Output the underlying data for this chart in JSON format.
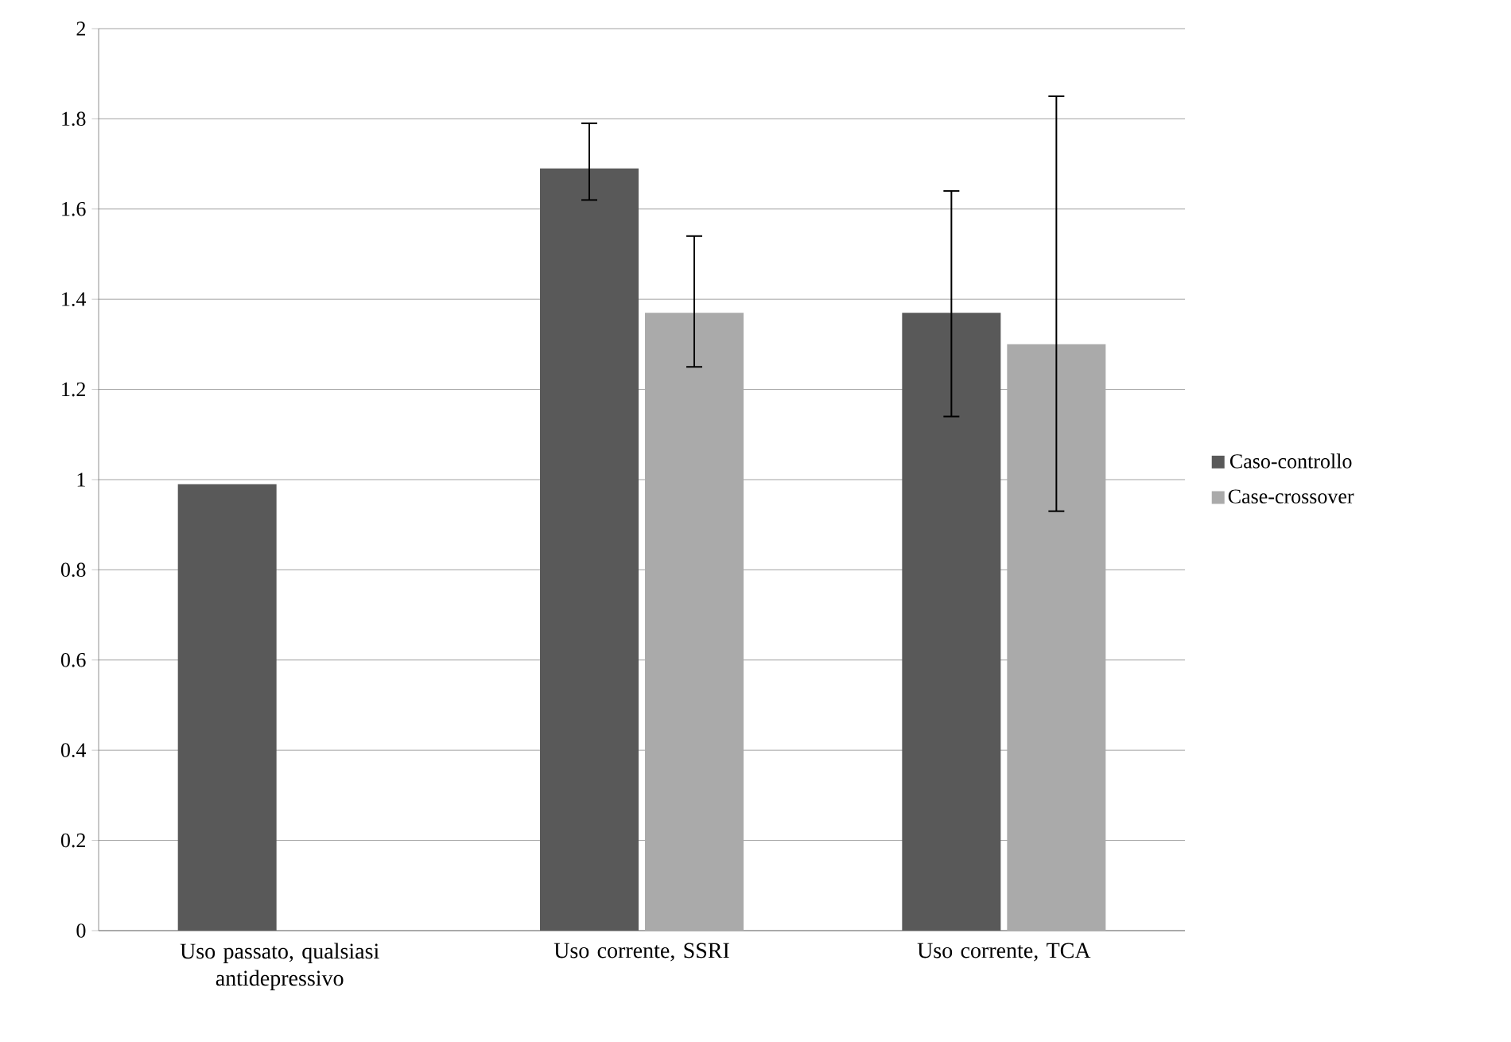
{
  "chart_data": {
    "type": "bar",
    "categories": [
      "Uso passato, qualsiasi antidepressivo",
      "Uso corrente, SSRI",
      "Uso corrente, TCA"
    ],
    "series": [
      {
        "name": "Caso-controllo",
        "color": "#595959",
        "values": [
          0.99,
          1.69,
          1.37
        ],
        "errors": [
          null,
          [
            1.62,
            1.79
          ],
          [
            1.14,
            1.64
          ]
        ]
      },
      {
        "name": "Case-crossover",
        "color": "#aaaaaa",
        "values": [
          null,
          1.37,
          1.3
        ],
        "errors": [
          null,
          [
            1.25,
            1.54
          ],
          [
            0.93,
            1.85
          ]
        ]
      }
    ],
    "ylim": [
      0,
      2
    ],
    "yticks": [
      0,
      0.2,
      0.4,
      0.6,
      0.8,
      1,
      1.2,
      1.4,
      1.6,
      1.8,
      2
    ],
    "grid": "y",
    "legend": "right"
  }
}
